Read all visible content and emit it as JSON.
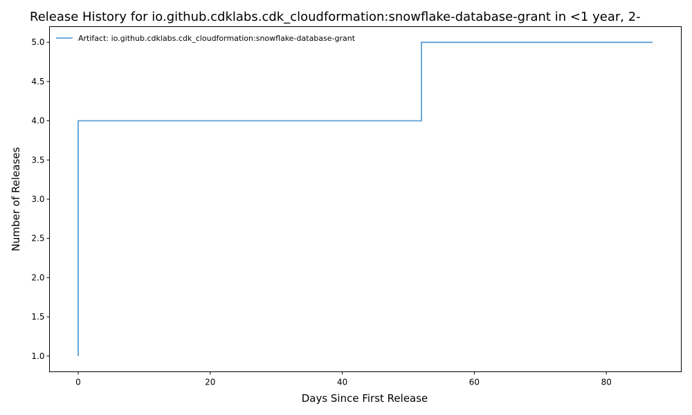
{
  "chart_data": {
    "type": "line",
    "title": "Release History for io.github.cdklabs.cdk_cloudformation:snowflake-database-grant in <1 year, 2-",
    "xlabel": "Days Since First Release",
    "ylabel": "Number of Releases",
    "xlim": [
      -4.35,
      91.35
    ],
    "ylim": [
      0.8,
      5.2
    ],
    "xticks": [
      0,
      20,
      40,
      60,
      80
    ],
    "yticks": [
      1.0,
      1.5,
      2.0,
      2.5,
      3.0,
      3.5,
      4.0,
      4.5,
      5.0
    ],
    "xtick_labels": [
      "0",
      "20",
      "40",
      "60",
      "80"
    ],
    "ytick_labels": [
      "1.0",
      "1.5",
      "2.0",
      "2.5",
      "3.0",
      "3.5",
      "4.0",
      "4.5",
      "5.0"
    ],
    "step": "post",
    "grid": false,
    "legend_position": "top-left",
    "series": [
      {
        "name": "Artifact: io.github.cdklabs.cdk_cloudformation:snowflake-database-grant",
        "color": "#5b9fd4",
        "x": [
          0,
          0,
          52,
          87
        ],
        "y": [
          1,
          4,
          5,
          5
        ]
      }
    ]
  }
}
